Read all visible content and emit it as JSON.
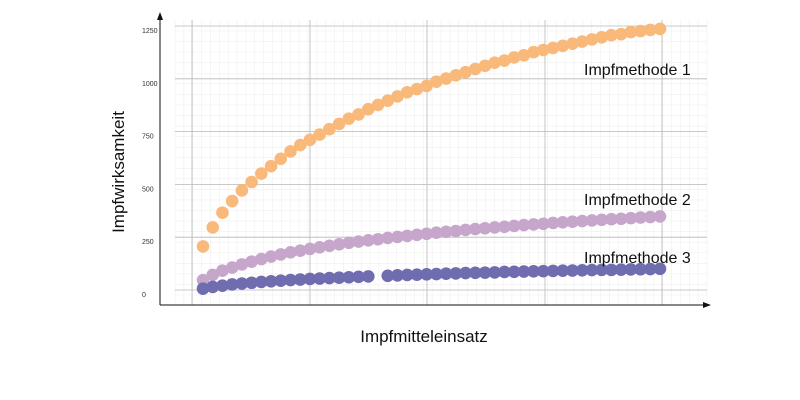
{
  "chart_data": {
    "type": "scatter",
    "title": "",
    "xlabel": "Impfmitteleinsatz",
    "ylabel": "Impfwirksamkeit",
    "yticks": [
      "0",
      "250",
      "500",
      "750",
      "1000",
      "1250"
    ],
    "ylim": [
      -60,
      1290
    ],
    "xlim": [
      0,
      49
    ],
    "grid": true,
    "x_ticks_labeled": false,
    "series": [
      {
        "name": "Impfmethode 1",
        "color": "#f9b97a",
        "x": [
          1,
          2,
          3,
          4,
          5,
          6,
          7,
          8,
          9,
          10,
          11,
          12,
          13,
          14,
          15,
          16,
          17,
          18,
          19,
          20,
          21,
          22,
          23,
          24,
          25,
          26,
          27,
          28,
          29,
          30,
          31,
          32,
          33,
          34,
          35,
          36,
          37,
          38,
          39,
          40,
          41,
          42,
          43,
          44,
          45,
          46,
          47,
          48
        ],
        "values": [
          230,
          320,
          390,
          445,
          495,
          535,
          575,
          610,
          645,
          680,
          710,
          735,
          760,
          785,
          810,
          835,
          855,
          880,
          900,
          920,
          940,
          960,
          975,
          990,
          1010,
          1025,
          1040,
          1055,
          1070,
          1085,
          1100,
          1110,
          1125,
          1135,
          1150,
          1160,
          1170,
          1180,
          1190,
          1200,
          1210,
          1220,
          1230,
          1235,
          1245,
          1250,
          1255,
          1260
        ]
      },
      {
        "name": "Impfmethode 2",
        "color": "#c7a6cc",
        "x": [
          1,
          2,
          3,
          4,
          5,
          6,
          7,
          8,
          9,
          10,
          11,
          12,
          13,
          14,
          15,
          16,
          17,
          18,
          19,
          20,
          21,
          22,
          23,
          24,
          25,
          26,
          27,
          28,
          29,
          30,
          31,
          32,
          33,
          34,
          35,
          36,
          37,
          38,
          39,
          40,
          41,
          42,
          43,
          44,
          45,
          46,
          47,
          48
        ],
        "values": [
          70,
          95,
          115,
          130,
          145,
          158,
          170,
          182,
          192,
          202,
          210,
          218,
          226,
          233,
          240,
          247,
          253,
          259,
          264,
          270,
          275,
          280,
          285,
          290,
          295,
          299,
          303,
          308,
          312,
          316,
          320,
          323,
          327,
          331,
          334,
          337,
          341,
          344,
          347,
          350,
          353,
          356,
          359,
          361,
          364,
          367,
          369,
          372
        ]
      },
      {
        "name": "Impfmethode 3",
        "color": "#6f6cb0",
        "x": [
          1,
          2,
          3,
          4,
          5,
          6,
          7,
          8,
          9,
          10,
          11,
          12,
          13,
          14,
          15,
          16,
          17,
          18,
          20,
          21,
          22,
          23,
          24,
          25,
          26,
          27,
          28,
          29,
          30,
          31,
          32,
          33,
          34,
          35,
          36,
          37,
          38,
          39,
          40,
          41,
          42,
          43,
          44,
          45,
          46,
          47,
          48
        ],
        "values": [
          30,
          38,
          44,
          50,
          54,
          58,
          62,
          65,
          68,
          71,
          73,
          76,
          78,
          80,
          82,
          84,
          86,
          88,
          91,
          93,
          95,
          96,
          98,
          99,
          101,
          102,
          104,
          105,
          106,
          107,
          109,
          110,
          111,
          112,
          113,
          114,
          115,
          116,
          117,
          118,
          119,
          119,
          120,
          121,
          122,
          123,
          124
        ]
      }
    ]
  }
}
